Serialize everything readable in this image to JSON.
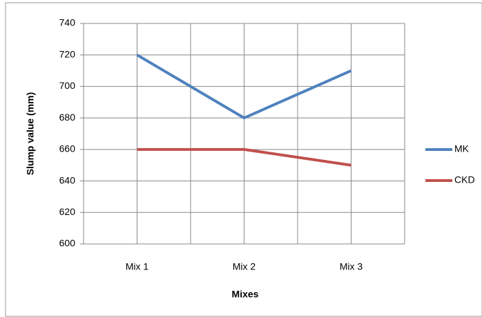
{
  "chart_data": {
    "type": "line",
    "categories": [
      "Mix 1",
      "Mix 2",
      "Mix 3"
    ],
    "series": [
      {
        "name": "MK",
        "color": "#4f81bd",
        "values": [
          720,
          680,
          710
        ]
      },
      {
        "name": "CKD",
        "color": "#c0504d",
        "values": [
          660,
          660,
          650
        ]
      }
    ],
    "x_label": "Mixes",
    "y_label": "Slump value (mm)",
    "ylim": [
      600,
      740
    ],
    "yticks": [
      600,
      620,
      640,
      660,
      680,
      700,
      720,
      740
    ],
    "grid": true,
    "legend": "right"
  }
}
